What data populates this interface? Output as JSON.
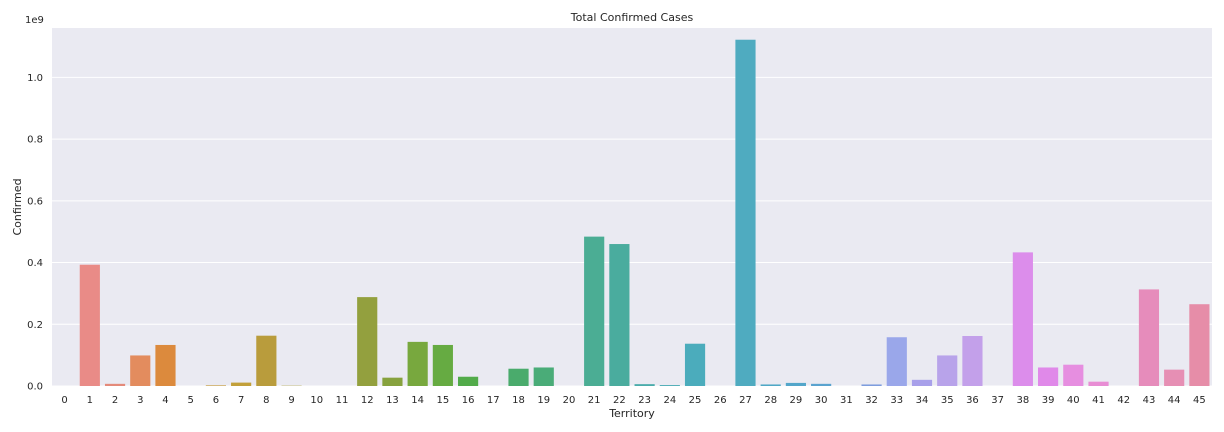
{
  "chart_data": {
    "type": "bar",
    "title": "Total Confirmed Cases",
    "xlabel": "Territory",
    "ylabel": "Confirmed",
    "y_offset_label": "1e9",
    "ylim": [
      0,
      1.16
    ],
    "y_unit": "1e9",
    "yticks": [
      0.0,
      0.2,
      0.4,
      0.6,
      0.8,
      1.0
    ],
    "ytick_labels": [
      "0.0",
      "0.2",
      "0.4",
      "0.6",
      "0.8",
      "1.0"
    ],
    "grid": true,
    "background": "#eaeaf2",
    "categories": [
      "0",
      "1",
      "2",
      "3",
      "4",
      "5",
      "6",
      "7",
      "8",
      "9",
      "10",
      "11",
      "12",
      "13",
      "14",
      "15",
      "16",
      "17",
      "18",
      "19",
      "20",
      "21",
      "22",
      "23",
      "24",
      "25",
      "26",
      "27",
      "28",
      "29",
      "30",
      "31",
      "32",
      "33",
      "34",
      "35",
      "36",
      "37",
      "38",
      "39",
      "40",
      "41",
      "42",
      "43",
      "44",
      "45"
    ],
    "values": [
      0.0,
      0.393,
      0.007,
      0.099,
      0.133,
      0.0,
      0.002,
      0.011,
      0.163,
      0.001,
      0.0,
      0.0,
      0.288,
      0.027,
      0.143,
      0.133,
      0.03,
      0.0,
      0.056,
      0.06,
      0.0,
      0.484,
      0.46,
      0.006,
      0.003,
      0.137,
      0.0,
      1.122,
      0.005,
      0.01,
      0.007,
      0.0,
      0.005,
      0.158,
      0.02,
      0.099,
      0.162,
      0.0,
      0.433,
      0.06,
      0.069,
      0.014,
      0.0,
      0.313,
      0.053,
      0.265
    ],
    "colors": [
      "#f0706a",
      "#e98b87",
      "#e48a7a",
      "#e38c5e",
      "#dc8a3d",
      "#d19a3c",
      "#c89c3a",
      "#c2a03a",
      "#b99c3c",
      "#aca03a",
      "#a5a33a",
      "#9ba43a",
      "#93a03e",
      "#87a23e",
      "#78a83e",
      "#66ab42",
      "#52ab4a",
      "#4cab60",
      "#4aab6c",
      "#4aac78",
      "#4aac86",
      "#4bad94",
      "#4aac9e",
      "#4aacab",
      "#4bacb5",
      "#4bacbc",
      "#4cacbe",
      "#4fabc0",
      "#50a8c6",
      "#53a6ca",
      "#5aa3cf",
      "#6aa0d8",
      "#7e9dde",
      "#9aa7ea",
      "#a8a0ea",
      "#b8a3ea",
      "#c3a0ea",
      "#d08ee8",
      "#dc8deb",
      "#e089e9",
      "#e68ee0",
      "#e88dd4",
      "#e58dc6",
      "#e68cbb",
      "#e68fb4",
      "#e68da8"
    ]
  }
}
